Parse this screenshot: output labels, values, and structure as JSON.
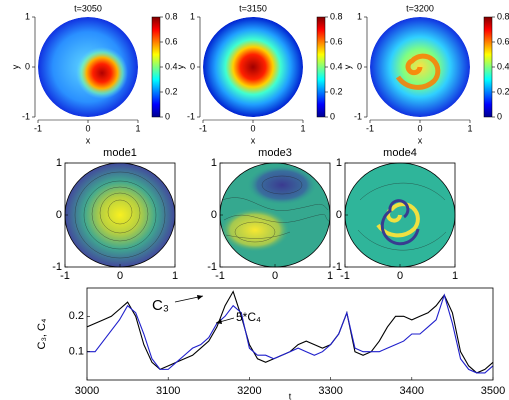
{
  "chart_data": [
    {
      "type": "heatmap",
      "title": "t=3050",
      "xlabel": "x",
      "ylabel": "y",
      "xlim": [
        -1,
        1
      ],
      "ylim": [
        -1,
        1
      ],
      "xticks": [
        -1,
        0,
        1
      ],
      "yticks": [
        -1,
        0,
        1
      ],
      "clim": [
        0,
        0.8
      ],
      "cticks": [
        0,
        0.2,
        0.4,
        0.6,
        0.8
      ]
    },
    {
      "type": "heatmap",
      "title": "t=3150",
      "xlabel": "x",
      "ylabel": "y",
      "xlim": [
        -1,
        1
      ],
      "ylim": [
        -1,
        1
      ],
      "xticks": [
        -1,
        0,
        1
      ],
      "yticks": [
        -1,
        0,
        1
      ],
      "clim": [
        0,
        0.8
      ],
      "cticks": [
        0,
        0.2,
        0.4,
        0.6,
        0.8
      ]
    },
    {
      "type": "heatmap",
      "title": "t=3200",
      "xlabel": "x",
      "ylabel": "y",
      "xlim": [
        -1,
        1
      ],
      "ylim": [
        -1,
        1
      ],
      "xticks": [
        -1,
        0,
        1
      ],
      "yticks": [
        -1,
        0,
        1
      ],
      "clim": [
        0,
        0.8
      ],
      "cticks": [
        0,
        0.2,
        0.4,
        0.6,
        0.8
      ]
    },
    {
      "type": "contour",
      "title": "mode1",
      "xlim": [
        -1,
        1
      ],
      "ylim": [
        -1,
        1
      ],
      "xticks": [
        -1,
        0,
        1
      ],
      "yticks": [
        -1,
        0,
        1
      ]
    },
    {
      "type": "contour",
      "title": "mode3",
      "xlim": [
        -1,
        1
      ],
      "ylim": [
        -1,
        1
      ],
      "xticks": [
        -1,
        0,
        1
      ],
      "yticks": [
        -1,
        0,
        1
      ]
    },
    {
      "type": "contour",
      "title": "mode4",
      "xlim": [
        -1,
        1
      ],
      "ylim": [
        -1,
        1
      ],
      "xticks": [
        -1,
        0,
        1
      ],
      "yticks": [
        -1,
        0,
        1
      ]
    },
    {
      "type": "line",
      "xlabel": "t",
      "ylabel": "C₃, C₄",
      "x": [
        3000,
        3010,
        3020,
        3030,
        3040,
        3050,
        3060,
        3070,
        3080,
        3090,
        3100,
        3110,
        3120,
        3130,
        3140,
        3150,
        3160,
        3170,
        3180,
        3190,
        3200,
        3210,
        3220,
        3230,
        3240,
        3250,
        3260,
        3270,
        3280,
        3290,
        3300,
        3310,
        3320,
        3330,
        3340,
        3350,
        3360,
        3370,
        3380,
        3390,
        3400,
        3410,
        3420,
        3430,
        3440,
        3450,
        3460,
        3470,
        3480,
        3490,
        3500
      ],
      "series": [
        {
          "name": "C₃",
          "color": "#000000",
          "values": [
            0.17,
            0.18,
            0.19,
            0.2,
            0.22,
            0.24,
            0.2,
            0.12,
            0.07,
            0.05,
            0.06,
            0.07,
            0.08,
            0.09,
            0.11,
            0.13,
            0.17,
            0.23,
            0.27,
            0.2,
            0.12,
            0.08,
            0.07,
            0.08,
            0.09,
            0.1,
            0.12,
            0.13,
            0.12,
            0.11,
            0.12,
            0.15,
            0.21,
            0.1,
            0.09,
            0.1,
            0.13,
            0.17,
            0.2,
            0.2,
            0.19,
            0.2,
            0.21,
            0.23,
            0.26,
            0.21,
            0.1,
            0.06,
            0.04,
            0.05,
            0.07
          ]
        },
        {
          "name": "5*C₄",
          "color": "#1f1fcc",
          "values": [
            0.1,
            0.1,
            0.13,
            0.16,
            0.19,
            0.23,
            0.21,
            0.15,
            0.08,
            0.05,
            0.05,
            0.07,
            0.09,
            0.11,
            0.12,
            0.14,
            0.18,
            0.2,
            0.23,
            0.21,
            0.11,
            0.09,
            0.09,
            0.08,
            0.09,
            0.1,
            0.11,
            0.1,
            0.09,
            0.1,
            0.12,
            0.15,
            0.21,
            0.11,
            0.1,
            0.1,
            0.1,
            0.11,
            0.12,
            0.13,
            0.15,
            0.15,
            0.17,
            0.19,
            0.26,
            0.18,
            0.08,
            0.05,
            0.04,
            0.04,
            0.06
          ]
        }
      ],
      "xlim": [
        3000,
        3500
      ],
      "ylim": [
        0.02,
        0.28
      ],
      "xticks": [
        3000,
        3100,
        3200,
        3300,
        3400,
        3500
      ],
      "yticks": [
        0.1,
        0.2
      ]
    }
  ]
}
